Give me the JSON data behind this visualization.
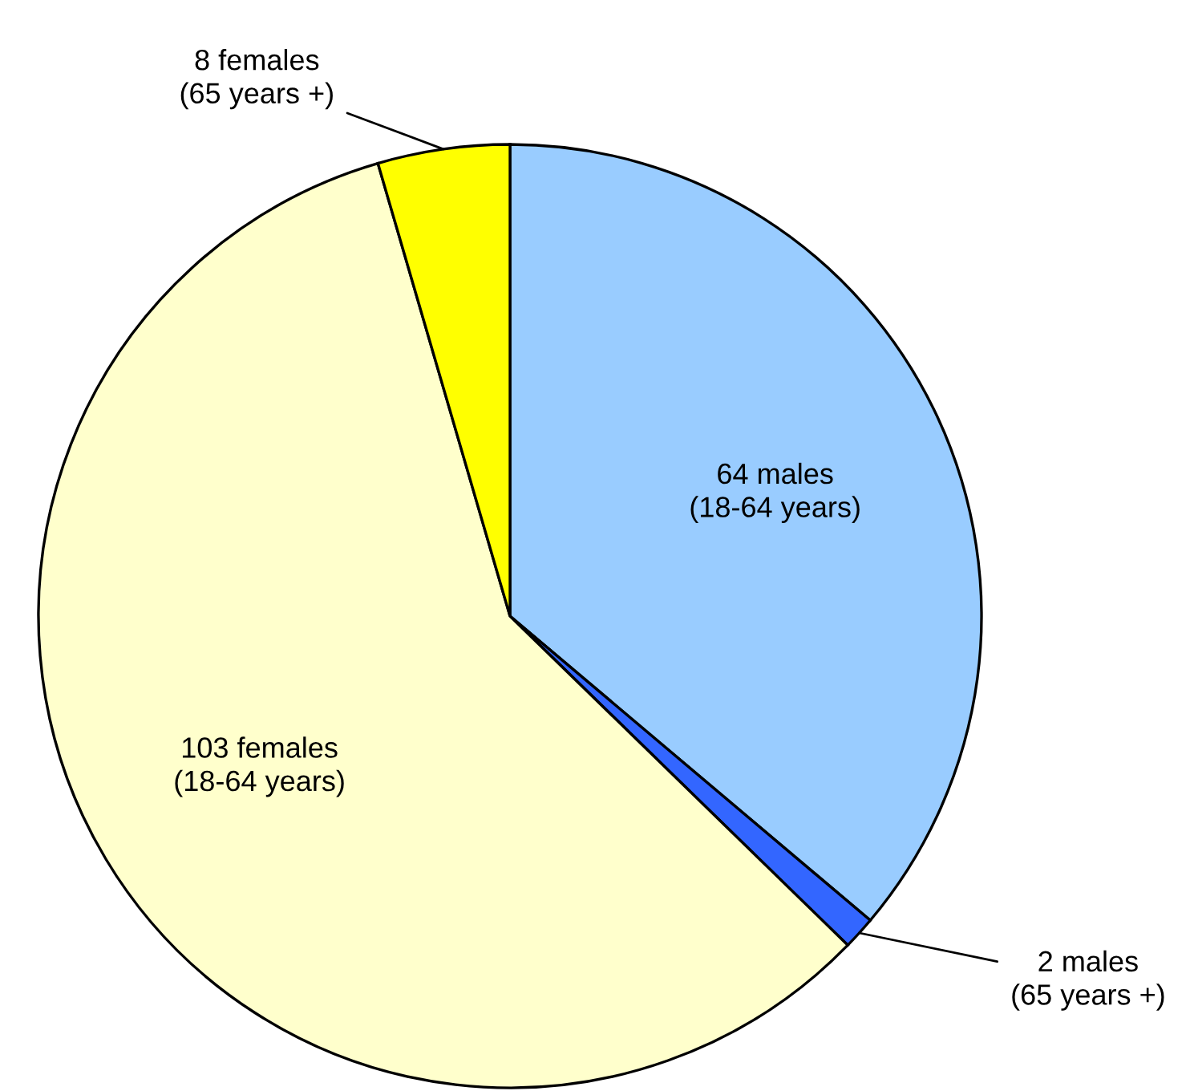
{
  "chart_data": {
    "type": "pie",
    "categories": [
      "64 males\n(18-64 years)",
      "2 males\n(65 years +)",
      "103 females\n(18-64 years)",
      "8 females\n(65 years +)"
    ],
    "values": [
      64,
      2,
      103,
      8
    ],
    "colors": [
      "#99ccff",
      "#3366ff",
      "#ffffcc",
      "#ffff00"
    ],
    "legend": false
  }
}
